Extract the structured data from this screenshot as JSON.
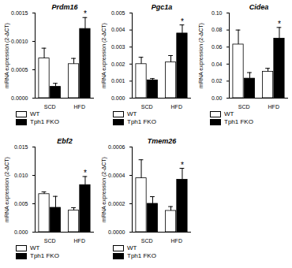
{
  "chart_data": [
    {
      "type": "bar",
      "title": "Prdm16",
      "y_label": "mRNA expression (2-ΔCT)",
      "categories": [
        "SCD",
        "HFD"
      ],
      "series": [
        {
          "name": "WT",
          "color": "#ffffff",
          "values": [
            0.0007,
            0.0006
          ],
          "errors": [
            0.00018,
            0.0001
          ]
        },
        {
          "name": "Tph1 FKO",
          "color": "#000000",
          "values": [
            0.0002,
            0.00122
          ],
          "errors": [
            6e-05,
            0.0002
          ]
        }
      ],
      "ylim": [
        0,
        0.0015
      ],
      "yticks": [
        {
          "value": 0,
          "label": "0.0000"
        },
        {
          "value": 0.0005,
          "label": "0.0005"
        },
        {
          "value": 0.001,
          "label": "0.0010"
        },
        {
          "value": 0.0015,
          "label": "0.0015"
        }
      ],
      "annotations": [
        {
          "category": "HFD",
          "series": "Tph1 FKO",
          "text": "*"
        }
      ],
      "legend": "bottom"
    },
    {
      "type": "bar",
      "title": "Pgc1a",
      "y_label": "mRNA expression (2-ΔCT)",
      "categories": [
        "SCD",
        "HFD"
      ],
      "series": [
        {
          "name": "WT",
          "color": "#ffffff",
          "values": [
            0.002,
            0.0021
          ],
          "errors": [
            0.0004,
            0.0004
          ]
        },
        {
          "name": "Tph1 FKO",
          "color": "#000000",
          "values": [
            0.00105,
            0.0038
          ],
          "errors": [
            0.0001,
            0.0005
          ]
        }
      ],
      "ylim": [
        0,
        0.005
      ],
      "yticks": [
        {
          "value": 0,
          "label": "0.000"
        },
        {
          "value": 0.001,
          "label": "0.001"
        },
        {
          "value": 0.002,
          "label": "0.002"
        },
        {
          "value": 0.003,
          "label": "0.003"
        },
        {
          "value": 0.004,
          "label": "0.004"
        },
        {
          "value": 0.005,
          "label": "0.005"
        }
      ],
      "annotations": [
        {
          "category": "HFD",
          "series": "Tph1 FKO",
          "text": "*"
        }
      ],
      "legend": "bottom"
    },
    {
      "type": "bar",
      "title": "Cidea",
      "y_label": "mRNA expression (2-ΔCT)",
      "categories": [
        "SCD",
        "HFD"
      ],
      "series": [
        {
          "name": "WT",
          "color": "#ffffff",
          "values": [
            0.063,
            0.031
          ],
          "errors": [
            0.017,
            0.004
          ]
        },
        {
          "name": "Tph1 FKO",
          "color": "#000000",
          "values": [
            0.023,
            0.07
          ],
          "errors": [
            0.007,
            0.013
          ]
        }
      ],
      "ylim": [
        0,
        0.1
      ],
      "yticks": [
        {
          "value": 0,
          "label": "0.00"
        },
        {
          "value": 0.02,
          "label": "0.02"
        },
        {
          "value": 0.04,
          "label": "0.04"
        },
        {
          "value": 0.06,
          "label": "0.06"
        },
        {
          "value": 0.08,
          "label": "0.08"
        },
        {
          "value": 0.1,
          "label": "0.10"
        }
      ],
      "annotations": [
        {
          "category": "HFD",
          "series": "Tph1 FKO",
          "text": "*"
        }
      ],
      "legend": "bottom"
    },
    {
      "type": "bar",
      "title": "Ebf2",
      "y_label": "mRNA expression (2-ΔCT)",
      "categories": [
        "SCD",
        "HFD"
      ],
      "series": [
        {
          "name": "WT",
          "color": "#ffffff",
          "values": [
            0.0067,
            0.0038
          ],
          "errors": [
            0.0004,
            0.0005
          ]
        },
        {
          "name": "Tph1 FKO",
          "color": "#000000",
          "values": [
            0.0043,
            0.0083
          ],
          "errors": [
            0.002,
            0.0015
          ]
        }
      ],
      "ylim": [
        0,
        0.015
      ],
      "yticks": [
        {
          "value": 0,
          "label": "0.000"
        },
        {
          "value": 0.005,
          "label": "0.005"
        },
        {
          "value": 0.01,
          "label": "0.010"
        },
        {
          "value": 0.015,
          "label": "0.015"
        }
      ],
      "annotations": [
        {
          "category": "HFD",
          "series": "Tph1 FKO",
          "text": "*"
        }
      ],
      "legend": "bottom"
    },
    {
      "type": "bar",
      "title": "Tmem26",
      "y_label": "mRNA expression (2-ΔCT)",
      "categories": [
        "SCD",
        "HFD"
      ],
      "series": [
        {
          "name": "WT",
          "color": "#ffffff",
          "values": [
            0.00038,
            0.00015
          ],
          "errors": [
            0.00013,
            3e-05
          ]
        },
        {
          "name": "Tph1 FKO",
          "color": "#000000",
          "values": [
            0.0002,
            0.00037
          ],
          "errors": [
            5e-05,
            8e-05
          ]
        }
      ],
      "ylim": [
        0,
        0.0006
      ],
      "yticks": [
        {
          "value": 0,
          "label": "0.0000"
        },
        {
          "value": 0.0002,
          "label": "0.0002"
        },
        {
          "value": 0.0004,
          "label": "0.0004"
        },
        {
          "value": 0.0006,
          "label": "0.0006"
        }
      ],
      "annotations": [
        {
          "category": "HFD",
          "series": "Tph1 FKO",
          "text": "*"
        }
      ],
      "legend": "bottom"
    }
  ]
}
